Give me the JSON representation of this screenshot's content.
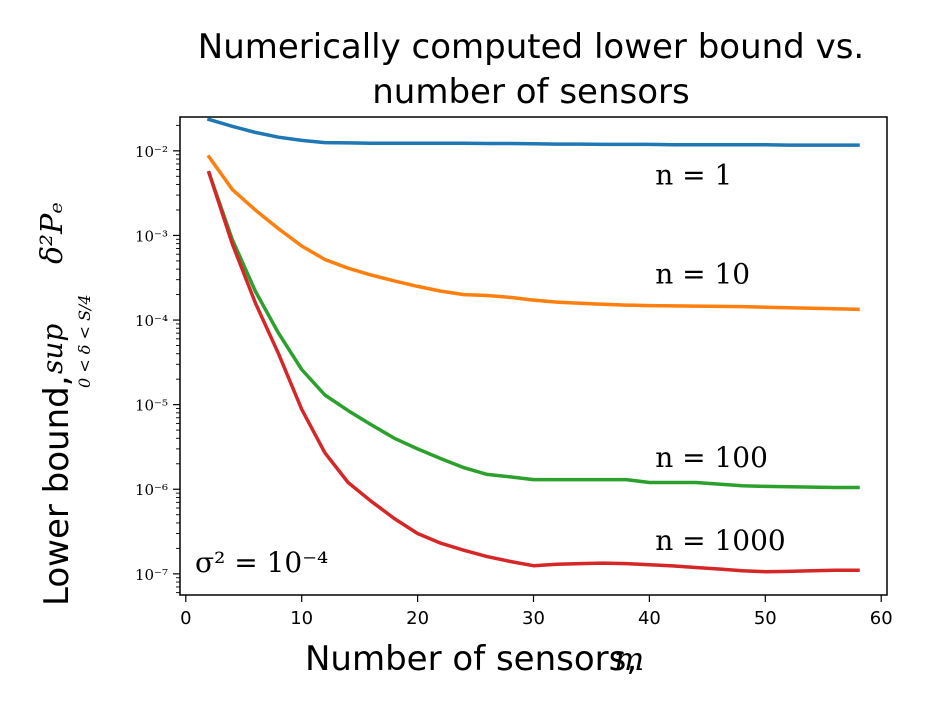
{
  "chart_data": {
    "type": "line",
    "title_line1": "Numerically computed lower bound vs.",
    "title_line2": "number of sensors",
    "xlabel_text": "Number of sensors,",
    "xlabel_var": "m",
    "ylabel_text": "Lower bound,",
    "ylabel_sup": "sup",
    "ylabel_sub": "0 < δ < S/4",
    "ylabel_expr": "δ²Pₑ",
    "xlim": [
      -0.5,
      60.5
    ],
    "ylim_log10": [
      -7.25,
      -1.6
    ],
    "yscale": "log",
    "grid": false,
    "x_ticks": [
      0,
      10,
      20,
      30,
      40,
      50,
      60
    ],
    "y_ticks": [
      {
        "exp": -2,
        "label": "10⁻²"
      },
      {
        "exp": -3,
        "label": "10⁻³"
      },
      {
        "exp": -4,
        "label": "10⁻⁴"
      },
      {
        "exp": -5,
        "label": "10⁻⁵"
      },
      {
        "exp": -6,
        "label": "10⁻⁶"
      },
      {
        "exp": -7,
        "label": "10⁻⁷"
      }
    ],
    "x": [
      2,
      4,
      6,
      8,
      10,
      12,
      14,
      16,
      18,
      20,
      22,
      24,
      26,
      28,
      30,
      32,
      34,
      36,
      38,
      40,
      42,
      44,
      46,
      48,
      50,
      52,
      54,
      56,
      58
    ],
    "series": [
      {
        "name": "n = 1",
        "color": "#1f77b4",
        "label_x": 40.5,
        "label_log10": -2.28,
        "values": [
          0.0235,
          0.0195,
          0.0165,
          0.0145,
          0.0133,
          0.0125,
          0.0124,
          0.0123,
          0.0123,
          0.0123,
          0.0123,
          0.0123,
          0.0122,
          0.0122,
          0.0121,
          0.012,
          0.012,
          0.0119,
          0.0119,
          0.0119,
          0.0118,
          0.0118,
          0.0118,
          0.0118,
          0.0118,
          0.0117,
          0.0117,
          0.0117,
          0.0117
        ]
      },
      {
        "name": "n = 10",
        "color": "#ff7f0e",
        "label_x": 40.5,
        "label_log10": -3.45,
        "values": [
          0.0085,
          0.0035,
          0.002,
          0.0012,
          0.00075,
          0.00052,
          0.00041,
          0.00034,
          0.00029,
          0.00025,
          0.00022,
          0.0002,
          0.000195,
          0.000185,
          0.000172,
          0.000163,
          0.000158,
          0.000154,
          0.00015,
          0.000148,
          0.000147,
          0.000146,
          0.000145,
          0.000144,
          0.000142,
          0.00014,
          0.000138,
          0.000136,
          0.000134
        ]
      },
      {
        "name": "n = 100",
        "color": "#2ca02c",
        "label_x": 40.5,
        "label_log10": -5.62,
        "values": [
          0.0055,
          0.0009,
          0.00022,
          7e-05,
          2.6e-05,
          1.3e-05,
          8.5e-06,
          5.8e-06,
          4e-06,
          3e-06,
          2.3e-06,
          1.8e-06,
          1.5e-06,
          1.4e-06,
          1.3e-06,
          1.3e-06,
          1.3e-06,
          1.3e-06,
          1.3e-06,
          1.2e-06,
          1.2e-06,
          1.2e-06,
          1.15e-06,
          1.1e-06,
          1.08e-06,
          1.07e-06,
          1.06e-06,
          1.05e-06,
          1.05e-06
        ]
      },
      {
        "name": "n = 1000",
        "color": "#d62728",
        "label_x": 40.5,
        "label_log10": -6.6,
        "values": [
          0.0055,
          0.0008,
          0.00016,
          4e-05,
          8.8e-06,
          2.7e-06,
          1.2e-06,
          7.2e-07,
          4.5e-07,
          3e-07,
          2.3e-07,
          1.9e-07,
          1.6e-07,
          1.4e-07,
          1.25e-07,
          1.3e-07,
          1.32e-07,
          1.34e-07,
          1.32e-07,
          1.28e-07,
          1.24e-07,
          1.19e-07,
          1.14e-07,
          1.09e-07,
          1.06e-07,
          1.07e-07,
          1.09e-07,
          1.1e-07,
          1.1e-07
        ]
      }
    ],
    "annotation": "σ² = 10⁻⁴"
  }
}
